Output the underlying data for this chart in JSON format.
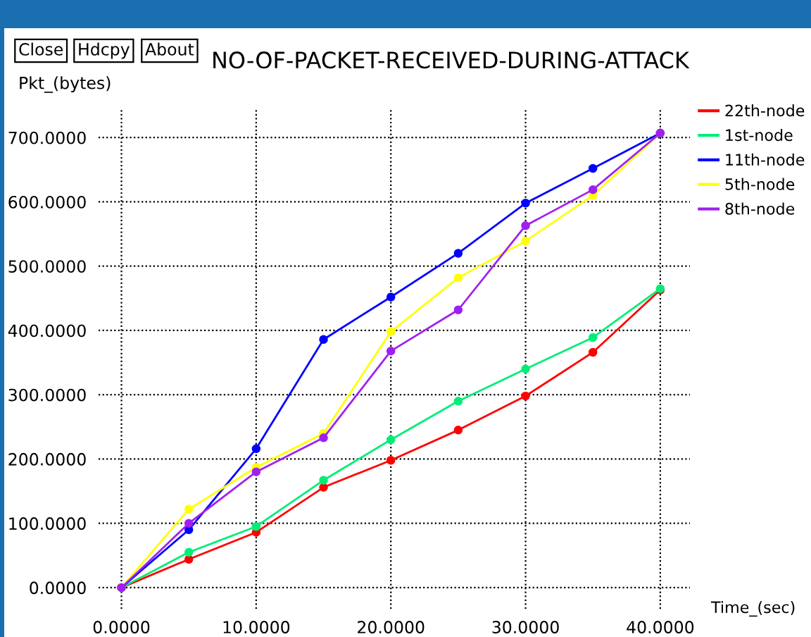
{
  "chart_data": {
    "type": "line",
    "title": "NO-OF-PACKET-RECEIVED-DURING-ATTACK",
    "xlabel": "Time_(sec)",
    "ylabel": "Pkt_(bytes)",
    "annotations": [
      "Close",
      "Hdcpy",
      "About"
    ],
    "x": [
      0,
      5,
      10,
      15,
      20,
      25,
      30,
      35,
      40
    ],
    "series": [
      {
        "name": "22th-node",
        "color": "#ff0000",
        "values": [
          0,
          44,
          86,
          156,
          198,
          245,
          298,
          366,
          463
        ]
      },
      {
        "name": "1st-node",
        "color": "#00ee77",
        "values": [
          0,
          55,
          95,
          167,
          230,
          290,
          340,
          389,
          465
        ]
      },
      {
        "name": "11th-node",
        "color": "#0000ff",
        "values": [
          0,
          90,
          216,
          386,
          452,
          520,
          598,
          652,
          707
        ]
      },
      {
        "name": "5th-node",
        "color": "#ffff00",
        "values": [
          0,
          122,
          187,
          240,
          398,
          482,
          539,
          610,
          707
        ]
      },
      {
        "name": "8th-node",
        "color": "#a020f0",
        "values": [
          0,
          100,
          180,
          233,
          368,
          432,
          563,
          619,
          707
        ]
      }
    ],
    "xlim": [
      -1.7,
      42.2
    ],
    "ylim": [
      -33,
      743
    ],
    "xticks": [
      {
        "value": 0,
        "label": "0.0000"
      },
      {
        "value": 10,
        "label": "10.0000"
      },
      {
        "value": 20,
        "label": "20.0000"
      },
      {
        "value": 30,
        "label": "30.0000"
      },
      {
        "value": 40,
        "label": "40.0000"
      }
    ],
    "yticks": [
      {
        "value": 0,
        "label": "0.0000"
      },
      {
        "value": 100,
        "label": "100.0000"
      },
      {
        "value": 200,
        "label": "200.0000"
      },
      {
        "value": 300,
        "label": "300.0000"
      },
      {
        "value": 400,
        "label": "400.0000"
      },
      {
        "value": 500,
        "label": "500.0000"
      },
      {
        "value": 600,
        "label": "600.0000"
      },
      {
        "value": 700,
        "label": "700.0000"
      }
    ],
    "grid": true,
    "legend": "right",
    "marker": "circle",
    "line_style": "solid"
  }
}
